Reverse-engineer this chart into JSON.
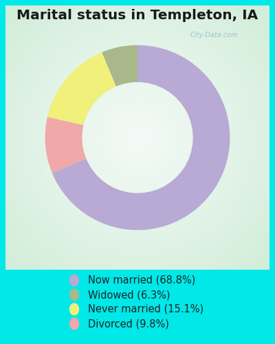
{
  "title": "Marital status in Templeton, IA",
  "slices": [
    68.8,
    9.8,
    15.1,
    6.3
  ],
  "labels": [
    "Now married (68.8%)",
    "Widowed (6.3%)",
    "Never married (15.1%)",
    "Divorced (9.8%)"
  ],
  "legend_colors": [
    "#b8aad4",
    "#a8b88a",
    "#f0f07a",
    "#f0a8a8"
  ],
  "pie_colors": [
    "#b8aad4",
    "#f0a8a8",
    "#f0f07a",
    "#a8b88a"
  ],
  "bg_outer": "#00e8e8",
  "bg_panel": "#d0ead8",
  "watermark": "City-Data.com",
  "start_angle": 90,
  "legend_fontsize": 10.5,
  "title_fontsize": 14.5,
  "donut_width": 0.4
}
